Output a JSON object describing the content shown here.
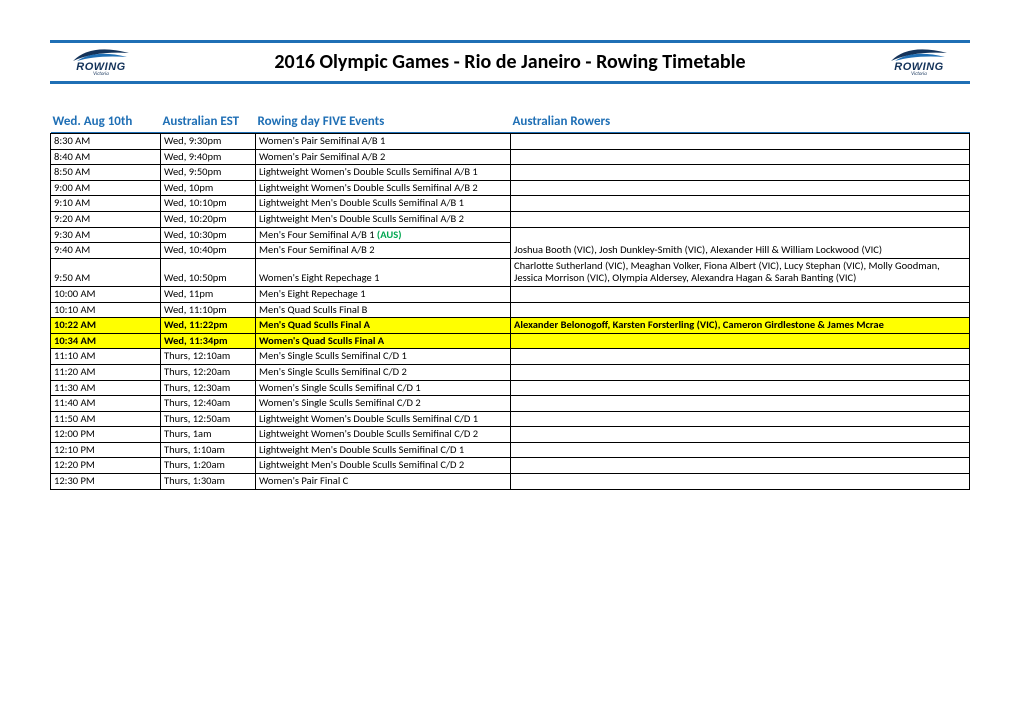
{
  "title": "2016 Olympic Games - Rio de Janeiro - Rowing Timetable",
  "logo": {
    "brand": "ROWING",
    "sub": "Victoria"
  },
  "headers": {
    "c0": "Wed. Aug 10th",
    "c1": "Australian EST",
    "c2": "Rowing day FIVE Events",
    "c3": "Australian Rowers"
  },
  "colors": {
    "band_border": "#1f6fb5",
    "header_text": "#1f6fb5",
    "highlight_bg": "#ffff00",
    "aus_tag": "#00a650",
    "cell_border": "#000000"
  },
  "rows": [
    {
      "t": "8:30 AM",
      "est": "Wed, 9:30pm",
      "event": "Women's Pair Semifinal A/B 1"
    },
    {
      "t": "8:40 AM",
      "est": "Wed, 9:40pm",
      "event": "Women's Pair Semifinal A/B 2"
    },
    {
      "t": "8:50 AM",
      "est": "Wed, 9:50pm",
      "event": "Lightweight Women's Double Sculls Semifinal A/B 1"
    },
    {
      "t": "9:00 AM",
      "est": "Wed, 10pm",
      "event": "Lightweight Women's Double Sculls Semifinal A/B 2"
    },
    {
      "t": "9:10 AM",
      "est": "Wed, 10:10pm",
      "event": "Lightweight Men's Double Sculls Semifinal A/B 1"
    },
    {
      "t": "9:20 AM",
      "est": "Wed, 10:20pm",
      "event": "Lightweight Men's Double Sculls Semifinal A/B 2"
    },
    {
      "t": "9:30 AM",
      "est": "Wed, 10:30pm",
      "event": "Men's Four Semifinal A/B 1",
      "aus": "(AUS)",
      "rowers": "Joshua Booth (VIC), Josh Dunkley-Smith (VIC), Alexander Hill & William Lockwood (VIC)",
      "rowersSpan": 2
    },
    {
      "t": "9:40 AM",
      "est": "Wed, 10:40pm",
      "event": "Men's Four Semifinal A/B 2"
    },
    {
      "t": "9:50 AM",
      "est": "Wed, 10:50pm",
      "event": "Women's Eight Repechage 1",
      "rowers": "Charlotte Sutherland (VIC), Meaghan Volker, Fiona Albert (VIC), Lucy Stephan (VIC), Molly Goodman, Jessica Morrison (VIC), Olympia Aldersey, Alexandra Hagan & Sarah Banting (VIC)"
    },
    {
      "t": "10:00 AM",
      "est": "Wed, 11pm",
      "event": "Men's Eight Repechage 1"
    },
    {
      "t": "10:10 AM",
      "est": "Wed, 11:10pm",
      "event": "Men's Quad Sculls Final B"
    },
    {
      "t": "10:22 AM",
      "est": "Wed, 11:22pm",
      "event": "Men's Quad Sculls Final A",
      "highlight": true,
      "rowers": "Alexander Belonogoff, Karsten Forsterling (VIC), Cameron Girdlestone & James Mcrae"
    },
    {
      "t": "10:34 AM",
      "est": "Wed, 11:34pm",
      "event": "Women's Quad Sculls Final A",
      "highlight": true
    },
    {
      "t": "11:10 AM",
      "est": "Thurs, 12:10am",
      "event": "Men's Single Sculls Semifinal C/D 1"
    },
    {
      "t": "11:20 AM",
      "est": "Thurs, 12:20am",
      "event": "Men's Single Sculls Semifinal C/D 2"
    },
    {
      "t": "11:30 AM",
      "est": "Thurs, 12:30am",
      "event": "Women's Single Sculls Semifinal C/D 1"
    },
    {
      "t": "11:40 AM",
      "est": "Thurs, 12:40am",
      "event": "Women's Single Sculls Semifinal C/D 2"
    },
    {
      "t": "11:50 AM",
      "est": "Thurs, 12:50am",
      "event": "Lightweight Women's Double Sculls Semifinal C/D 1"
    },
    {
      "t": "12:00 PM",
      "est": "Thurs, 1am",
      "event": "Lightweight Women's Double Sculls Semifinal C/D 2"
    },
    {
      "t": "12:10 PM",
      "est": "Thurs, 1:10am",
      "event": "Lightweight Men's Double Sculls Semifinal C/D 1"
    },
    {
      "t": "12:20 PM",
      "est": "Thurs, 1:20am",
      "event": "Lightweight Men's Double Sculls Semifinal C/D 2"
    },
    {
      "t": "12:30 PM",
      "est": "Thurs, 1:30am",
      "event": "Women's Pair Final C"
    }
  ]
}
